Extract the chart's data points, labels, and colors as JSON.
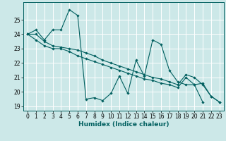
{
  "xlabel": "Humidex (Indice chaleur)",
  "bg_color": "#cce8e8",
  "grid_color": "#ffffff",
  "line_color": "#005f5f",
  "ylim": [
    18.7,
    26.2
  ],
  "xlim": [
    -0.5,
    23.5
  ],
  "yticks": [
    19,
    20,
    21,
    22,
    23,
    24,
    25
  ],
  "xticks": [
    0,
    1,
    2,
    3,
    4,
    5,
    6,
    7,
    8,
    9,
    10,
    11,
    12,
    13,
    14,
    15,
    16,
    17,
    18,
    19,
    20,
    21,
    22,
    23
  ],
  "series": [
    [
      24.0,
      24.3,
      23.6,
      24.3,
      24.3,
      25.7,
      25.3,
      19.5,
      19.6,
      19.4,
      19.9,
      21.1,
      19.9,
      22.2,
      21.1,
      23.6,
      23.3,
      21.5,
      20.7,
      20.5,
      20.5,
      20.6,
      19.7,
      19.3
    ],
    [
      24.0,
      23.6,
      23.2,
      23.0,
      23.0,
      22.8,
      22.5,
      22.3,
      22.1,
      21.9,
      21.7,
      21.5,
      21.3,
      21.1,
      20.9,
      20.8,
      20.6,
      20.5,
      20.3,
      21.0,
      20.5,
      19.3,
      null,
      null
    ],
    [
      24.0,
      24.0,
      23.5,
      23.2,
      23.1,
      23.0,
      22.9,
      22.7,
      22.5,
      22.2,
      22.0,
      21.8,
      21.6,
      21.4,
      21.2,
      21.0,
      20.9,
      20.7,
      20.5,
      21.2,
      21.0,
      20.5,
      19.7,
      19.3
    ]
  ]
}
